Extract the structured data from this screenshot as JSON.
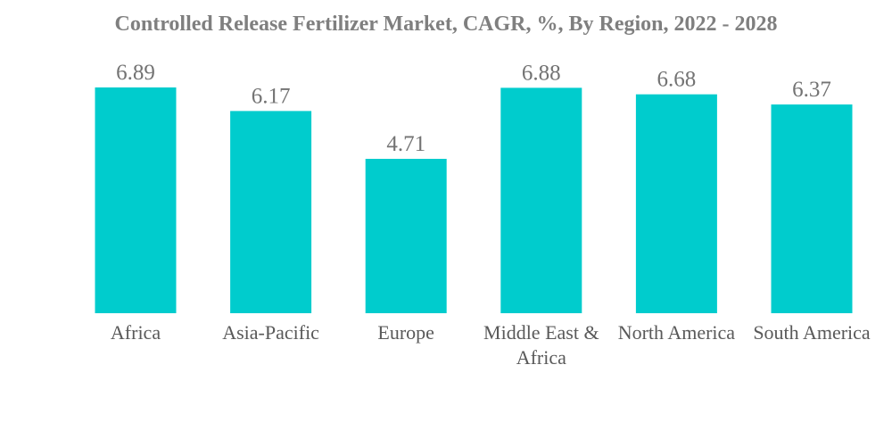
{
  "chart_data": {
    "type": "bar",
    "title": "Controlled Release Fertilizer Market, CAGR, %, By Region, 2022 - 2028",
    "xlabel": "",
    "ylabel": "",
    "categories": [
      [
        "Africa"
      ],
      [
        "Asia-Pacific"
      ],
      [
        "Europe"
      ],
      [
        "Middle East &",
        "Africa"
      ],
      [
        "North America"
      ],
      [
        "South America"
      ]
    ],
    "values": [
      6.89,
      6.17,
      4.71,
      6.88,
      6.68,
      6.37
    ],
    "ylim": [
      0,
      6.89
    ],
    "grid": false,
    "legend": "none",
    "bar_color": "#00cccd"
  }
}
